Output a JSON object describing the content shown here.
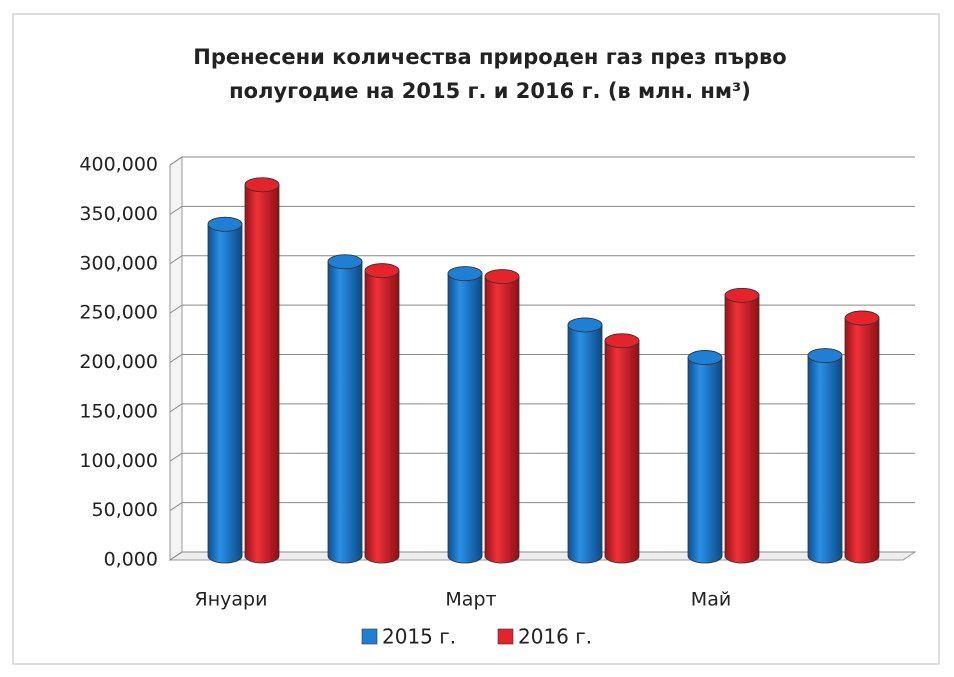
{
  "chart_data": {
    "type": "bar",
    "title": [
      "Пренесени количества природен газ през първо",
      "полугодие на 2015 г. и 2016 г. (в млн. нм³)"
    ],
    "categories": [
      "Януари",
      null,
      "Март",
      null,
      "Май",
      null
    ],
    "series": [
      {
        "name": "2015 г.",
        "color": "#1f7fd4",
        "values": [
          340,
          302,
          290,
          238,
          205,
          207
        ]
      },
      {
        "name": "2016 г.",
        "color": "#e5232b",
        "values": [
          380,
          293,
          287,
          222,
          268,
          245
        ]
      }
    ],
    "ylim": [
      0,
      400
    ],
    "yticks": [
      {
        "value": 0,
        "label": "0,000"
      },
      {
        "value": 50,
        "label": "50,000"
      },
      {
        "value": 100,
        "label": "100,000"
      },
      {
        "value": 150,
        "label": "150,000"
      },
      {
        "value": 200,
        "label": "200,000"
      },
      {
        "value": 250,
        "label": "250,000"
      },
      {
        "value": 300,
        "label": "300,000"
      },
      {
        "value": 350,
        "label": "350,000"
      },
      {
        "value": 400,
        "label": "400,000"
      }
    ],
    "grid": true,
    "legend": "bottom"
  }
}
